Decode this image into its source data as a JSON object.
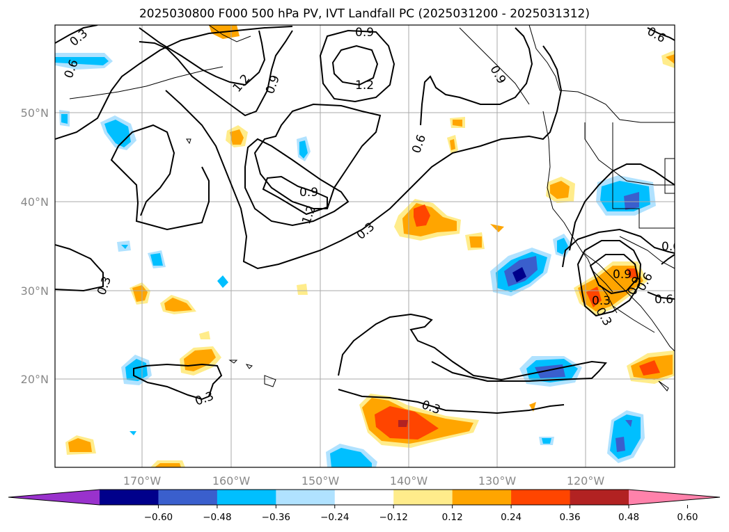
{
  "title": "2025030800 F000 500 hPa PV, IVT Landfall PC (2025031200 - 2025031312)",
  "lon_labels": [
    "170°W",
    "160°W",
    "150°W",
    "140°W",
    "130°W",
    "120°W"
  ],
  "lat_labels": [
    "50°N",
    "40°N",
    "30°N",
    "20°N"
  ],
  "colorbar": {
    "colors": [
      "#9932cc",
      "#00008b",
      "#3a5fcd",
      "#00bfff",
      "#b0e2ff",
      "#ffffff",
      "#ffec8b",
      "#ffa500",
      "#ff4500",
      "#b22222",
      "#ff82ab"
    ],
    "tick_labels": [
      "−0.60",
      "−0.48",
      "−0.36",
      "−0.24",
      "−0.12",
      "0.12",
      "0.24",
      "0.36",
      "0.48",
      "0.60"
    ]
  },
  "contour_labels": [
    "0.3",
    "0.6",
    "0.9",
    "0.9",
    "1.2",
    "1.2",
    "0.9",
    "0.6",
    "0.6",
    "0.3",
    "0.9",
    "0.9",
    "1.2",
    "0.6",
    "0.3",
    "0.3",
    "0.3",
    "0.3",
    "0.3",
    "0.9",
    "0.6",
    "0.6"
  ]
}
